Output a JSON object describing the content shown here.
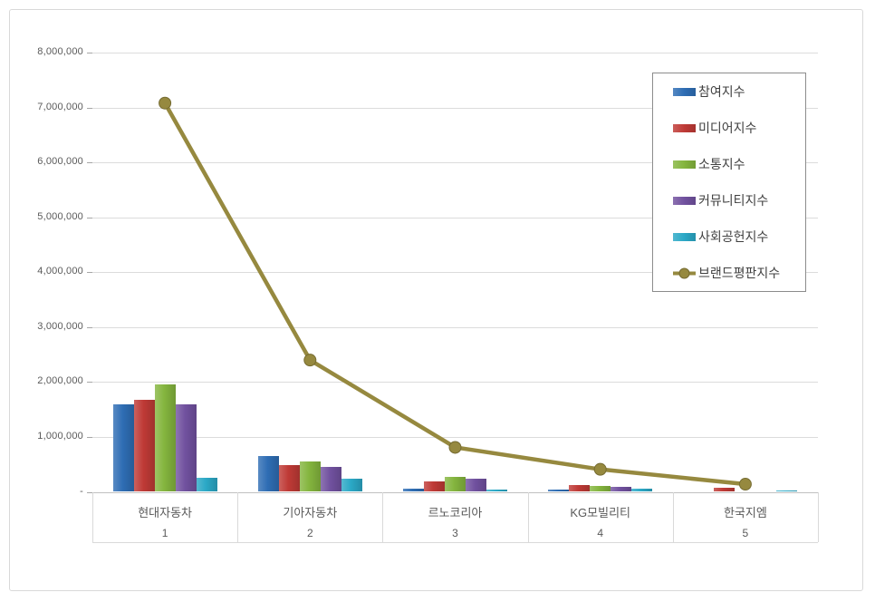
{
  "chart_data": {
    "type": "bar",
    "subtype": "grouped-bars-with-line-overlay",
    "categories": [
      "현대자동차",
      "기아자동차",
      "르노코리아",
      "KG모빌리티",
      "한국지엠"
    ],
    "ranks": [
      "1",
      "2",
      "3",
      "4",
      "5"
    ],
    "series": [
      {
        "name": "참여지수",
        "type": "bar",
        "color": "#2E6DB4",
        "values": [
          1600000,
          660000,
          60000,
          45000,
          15000
        ]
      },
      {
        "name": "미디어지수",
        "type": "bar",
        "color": "#BF3A36",
        "values": [
          1670000,
          490000,
          195000,
          125000,
          70000
        ]
      },
      {
        "name": "소통지수",
        "type": "bar",
        "color": "#84B53E",
        "values": [
          1960000,
          550000,
          270000,
          100000,
          15000
        ]
      },
      {
        "name": "커뮤니티지수",
        "type": "bar",
        "color": "#71519F",
        "values": [
          1590000,
          460000,
          245000,
          85000,
          10000
        ]
      },
      {
        "name": "사회공헌지수",
        "type": "bar",
        "color": "#2BA8C6",
        "values": [
          260000,
          240000,
          40000,
          55000,
          30000
        ]
      },
      {
        "name": "브랜드평판지수",
        "type": "line",
        "color": "#96893F",
        "values": [
          7080000,
          2400000,
          810000,
          410000,
          140000
        ]
      }
    ],
    "y_axis": {
      "min": 0,
      "max": 8000000,
      "step": 1000000,
      "tick_labels": [
        "-",
        "1,000,000",
        "2,000,000",
        "3,000,000",
        "4,000,000",
        "5,000,000",
        "6,000,000",
        "7,000,000",
        "8,000,000"
      ]
    },
    "legend_position": "right-top",
    "grid": true,
    "colors": {
      "gridline": "#dcdcdc",
      "axis_text": "#595959",
      "legend_text": "#404040",
      "legend_border": "#8c8c8c",
      "card_border": "#d9d9d9"
    }
  }
}
